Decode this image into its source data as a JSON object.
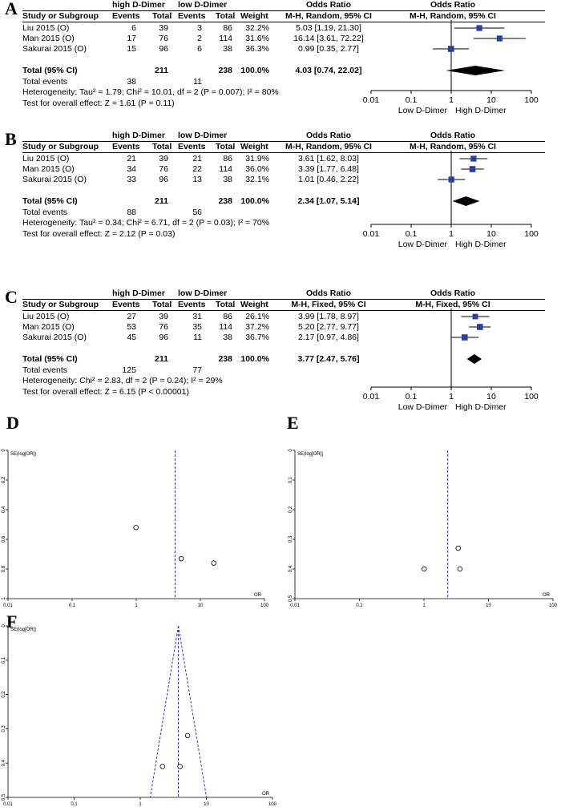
{
  "forest": [
    {
      "label": "A",
      "group_high": "high D-Dimer",
      "group_low": "low D-Dimer",
      "headers": {
        "study": "Study or Subgroup",
        "events": "Events",
        "total": "Total",
        "weight": "Weight",
        "or_title": "Odds Ratio",
        "method": "M-H, Random, 95% CI"
      },
      "studies": [
        {
          "name": "Liu 2015 (O)",
          "he": "6",
          "ht": "39",
          "le": "3",
          "lt": "86",
          "weight": "32.2%",
          "ci": "5.03 [1.19, 21.30]",
          "or": 5.03,
          "lo": 1.19,
          "hi": 21.3,
          "w": 32.2
        },
        {
          "name": "Man 2015 (O)",
          "he": "17",
          "ht": "76",
          "le": "2",
          "lt": "114",
          "weight": "31.6%",
          "ci": "16.14 [3.61, 72.22]",
          "or": 16.14,
          "lo": 3.61,
          "hi": 72.22,
          "w": 31.6
        },
        {
          "name": "Sakurai 2015 (O)",
          "he": "15",
          "ht": "96",
          "le": "6",
          "lt": "38",
          "weight": "36.3%",
          "ci": "0.99 [0.35, 2.77]",
          "or": 0.99,
          "lo": 0.35,
          "hi": 2.77,
          "w": 36.3
        }
      ],
      "total": {
        "name": "Total (95% CI)",
        "ht": "211",
        "lt": "238",
        "weight": "100.0%",
        "ci": "4.03 [0.74, 22.02]",
        "or": 4.03,
        "lo": 0.74,
        "hi": 22.02
      },
      "total_events": {
        "label": "Total events",
        "high": "38",
        "low": "11"
      },
      "heterogeneity": "Heterogeneity: Tau² = 1.79; Chi² = 10.01, df = 2 (P = 0.007); I² = 80%",
      "overall": "Test for overall effect: Z = 1.61 (P = 0.11)",
      "axis_ticks": [
        "0.01",
        "0.1",
        "1",
        "10",
        "100"
      ],
      "favours_left": "Low D-Dimer",
      "favours_right": "High D-Dimer"
    },
    {
      "label": "B",
      "group_high": "high D-Dimer",
      "group_low": "low D-Dimer",
      "headers": {
        "study": "Study or Subgroup",
        "events": "Events",
        "total": "Total",
        "weight": "Weight",
        "or_title": "Odds Ratio",
        "method": "M-H, Random, 95% CI"
      },
      "studies": [
        {
          "name": "Liu 2015 (O)",
          "he": "21",
          "ht": "39",
          "le": "21",
          "lt": "86",
          "weight": "31.9%",
          "ci": "3.61 [1.62, 8.03]",
          "or": 3.61,
          "lo": 1.62,
          "hi": 8.03,
          "w": 31.9
        },
        {
          "name": "Man 2015 (O)",
          "he": "34",
          "ht": "76",
          "le": "22",
          "lt": "114",
          "weight": "36.0%",
          "ci": "3.39 [1.77, 6.48]",
          "or": 3.39,
          "lo": 1.77,
          "hi": 6.48,
          "w": 36.0
        },
        {
          "name": "Sakurai 2015 (O)",
          "he": "33",
          "ht": "96",
          "le": "13",
          "lt": "38",
          "weight": "32.1%",
          "ci": "1.01 [0.46, 2.22]",
          "or": 1.01,
          "lo": 0.46,
          "hi": 2.22,
          "w": 32.1
        }
      ],
      "total": {
        "name": "Total (95% CI)",
        "ht": "211",
        "lt": "238",
        "weight": "100.0%",
        "ci": "2.34 [1.07, 5.14]",
        "or": 2.34,
        "lo": 1.07,
        "hi": 5.14
      },
      "total_events": {
        "label": "Total events",
        "high": "88",
        "low": "56"
      },
      "heterogeneity": "Heterogeneity: Tau² = 0.34; Chi² = 6.71, df = 2 (P = 0.03); I² = 70%",
      "overall": "Test for overall effect: Z = 2.12 (P = 0.03)",
      "axis_ticks": [
        "0.01",
        "0.1",
        "1",
        "10",
        "100"
      ],
      "favours_left": "Low D-Dimer",
      "favours_right": "High D-Dimer"
    },
    {
      "label": "C",
      "group_high": "high D-Dimer",
      "group_low": "low D-Dimer",
      "headers": {
        "study": "Study or Subgroup",
        "events": "Events",
        "total": "Total",
        "weight": "Weight",
        "or_title": "Odds Ratio",
        "method": "M-H, Fixed, 95% CI"
      },
      "studies": [
        {
          "name": "Liu 2015 (O)",
          "he": "27",
          "ht": "39",
          "le": "31",
          "lt": "86",
          "weight": "26.1%",
          "ci": "3.99 [1.78, 8.97]",
          "or": 3.99,
          "lo": 1.78,
          "hi": 8.97,
          "w": 26.1
        },
        {
          "name": "Man 2015 (O)",
          "he": "53",
          "ht": "76",
          "le": "35",
          "lt": "114",
          "weight": "37.2%",
          "ci": "5.20 [2.77, 9.77]",
          "or": 5.2,
          "lo": 2.77,
          "hi": 9.77,
          "w": 37.2
        },
        {
          "name": "Sakurai 2015 (O)",
          "he": "45",
          "ht": "96",
          "le": "11",
          "lt": "38",
          "weight": "36.7%",
          "ci": "2.17 [0.97, 4.86]",
          "or": 2.17,
          "lo": 0.97,
          "hi": 4.86,
          "w": 36.7
        }
      ],
      "total": {
        "name": "Total (95% CI)",
        "ht": "211",
        "lt": "238",
        "weight": "100.0%",
        "ci": "3.77 [2.47, 5.76]",
        "or": 3.77,
        "lo": 2.47,
        "hi": 5.76
      },
      "total_events": {
        "label": "Total events",
        "high": "125",
        "low": "77"
      },
      "heterogeneity": "Heterogeneity: Chi² = 2.83, df = 2 (P = 0.24); I² = 29%",
      "overall": "Test for overall effect: Z = 6.15 (P < 0.00001)",
      "axis_ticks": [
        "0.01",
        "0.1",
        "1",
        "10",
        "100"
      ],
      "favours_left": "Low D-Dimer",
      "favours_right": "High D-Dimer"
    }
  ],
  "funnel": [
    {
      "label": "D",
      "ylabel": "SE(log[OR])",
      "xlabel": "OR",
      "yticks": [
        "0",
        "0.2",
        "0.4",
        "0.6",
        "0.8",
        "1"
      ],
      "ymax": 1.0,
      "xticks": [
        "0.01",
        "0.1",
        "1",
        "10",
        "100"
      ],
      "center": 4.03,
      "show_funnel": false,
      "points": [
        {
          "or": 0.99,
          "se": 0.52
        },
        {
          "or": 5.03,
          "se": 0.73
        },
        {
          "or": 16.14,
          "se": 0.76
        }
      ]
    },
    {
      "label": "E",
      "ylabel": "SE(log[OR])",
      "xlabel": "OR",
      "yticks": [
        "0",
        "0.1",
        "0.2",
        "0.3",
        "0.4",
        "0.5"
      ],
      "ymax": 0.5,
      "xticks": [
        "0.01",
        "0.1",
        "1",
        "10",
        "100"
      ],
      "center": 2.34,
      "show_funnel": false,
      "points": [
        {
          "or": 1.01,
          "se": 0.4
        },
        {
          "or": 3.39,
          "se": 0.33
        },
        {
          "or": 3.61,
          "se": 0.4
        }
      ]
    },
    {
      "label": "F",
      "ylabel": "SE(log[OR])",
      "xlabel": "OR",
      "yticks": [
        "0",
        "0.1",
        "0.2",
        "0.3",
        "0.4",
        "0.5"
      ],
      "ymax": 0.5,
      "xticks": [
        "0.01",
        "0.1",
        "1",
        "10",
        "100"
      ],
      "center": 3.77,
      "show_funnel": true,
      "points": [
        {
          "or": 2.17,
          "se": 0.41
        },
        {
          "or": 3.99,
          "se": 0.41
        },
        {
          "or": 5.2,
          "se": 0.32
        }
      ]
    }
  ],
  "chart_data": [
    {
      "type": "forest",
      "title": "A",
      "method": "M-H, Random, 95% CI",
      "x_scale": "log",
      "xlim": [
        0.01,
        100
      ],
      "studies": [
        "Liu 2015 (O)",
        "Man 2015 (O)",
        "Sakurai 2015 (O)"
      ],
      "or": [
        5.03,
        16.14,
        0.99
      ],
      "lower": [
        1.19,
        3.61,
        0.35
      ],
      "upper": [
        21.3,
        72.22,
        2.77
      ],
      "weights": [
        32.2,
        31.6,
        36.3
      ],
      "pooled": {
        "or": 4.03,
        "lower": 0.74,
        "upper": 22.02
      }
    },
    {
      "type": "forest",
      "title": "B",
      "method": "M-H, Random, 95% CI",
      "x_scale": "log",
      "xlim": [
        0.01,
        100
      ],
      "studies": [
        "Liu 2015 (O)",
        "Man 2015 (O)",
        "Sakurai 2015 (O)"
      ],
      "or": [
        3.61,
        3.39,
        1.01
      ],
      "lower": [
        1.62,
        1.77,
        0.46
      ],
      "upper": [
        8.03,
        6.48,
        2.22
      ],
      "weights": [
        31.9,
        36.0,
        32.1
      ],
      "pooled": {
        "or": 2.34,
        "lower": 1.07,
        "upper": 5.14
      }
    },
    {
      "type": "forest",
      "title": "C",
      "method": "M-H, Fixed, 95% CI",
      "x_scale": "log",
      "xlim": [
        0.01,
        100
      ],
      "studies": [
        "Liu 2015 (O)",
        "Man 2015 (O)",
        "Sakurai 2015 (O)"
      ],
      "or": [
        3.99,
        5.2,
        2.17
      ],
      "lower": [
        1.78,
        2.77,
        0.97
      ],
      "upper": [
        8.97,
        9.77,
        4.86
      ],
      "weights": [
        26.1,
        37.2,
        36.7
      ],
      "pooled": {
        "or": 3.77,
        "lower": 2.47,
        "upper": 5.76
      }
    },
    {
      "type": "scatter",
      "title": "D",
      "xlabel": "OR",
      "ylabel": "SE(log[OR])",
      "x_scale": "log",
      "xlim": [
        0.01,
        100
      ],
      "ylim": [
        1,
        0
      ],
      "x": [
        0.99,
        5.03,
        16.14
      ],
      "y": [
        0.52,
        0.73,
        0.76
      ],
      "reference_line": 4.03
    },
    {
      "type": "scatter",
      "title": "E",
      "xlabel": "OR",
      "ylabel": "SE(log[OR])",
      "x_scale": "log",
      "xlim": [
        0.01,
        100
      ],
      "ylim": [
        0.5,
        0
      ],
      "x": [
        1.01,
        3.39,
        3.61
      ],
      "y": [
        0.4,
        0.33,
        0.4
      ],
      "reference_line": 2.34
    },
    {
      "type": "scatter",
      "title": "F",
      "xlabel": "OR",
      "ylabel": "SE(log[OR])",
      "x_scale": "log",
      "xlim": [
        0.01,
        100
      ],
      "ylim": [
        0.5,
        0
      ],
      "x": [
        2.17,
        3.99,
        5.2
      ],
      "y": [
        0.41,
        0.41,
        0.32
      ],
      "reference_line": 3.77,
      "funnel": true
    }
  ]
}
